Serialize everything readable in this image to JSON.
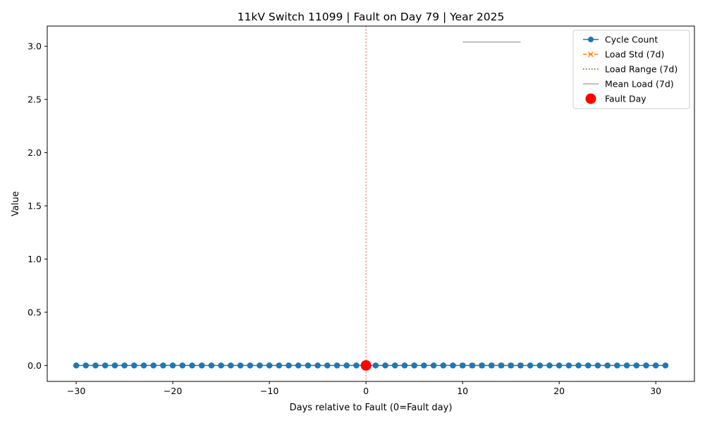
{
  "chart_data": {
    "type": "line",
    "title": "11kV Switch 11099 | Fault on Day 79 | Year 2025",
    "xlabel": "Days relative to Fault (0=Fault day)",
    "ylabel": "Value",
    "xlim": [
      -33,
      34
    ],
    "ylim": [
      -0.15,
      3.19
    ],
    "xticks": [
      -30,
      -20,
      -10,
      0,
      10,
      20,
      30
    ],
    "xtick_labels": [
      "−30",
      "−20",
      "−10",
      "0",
      "10",
      "20",
      "30"
    ],
    "yticks": [
      0.0,
      0.5,
      1.0,
      1.5,
      2.0,
      2.5,
      3.0
    ],
    "ytick_labels": [
      "0.0",
      "0.5",
      "1.0",
      "1.5",
      "2.0",
      "2.5",
      "3.0"
    ],
    "grid": false,
    "legend_position": "upper right",
    "fault_day": 0,
    "series": [
      {
        "name": "Cycle Count",
        "color": "#1f77b4",
        "marker": "circle",
        "linestyle": "solid",
        "x": [
          -30,
          -29,
          -28,
          -27,
          -26,
          -25,
          -24,
          -23,
          -22,
          -21,
          -20,
          -19,
          -18,
          -17,
          -16,
          -15,
          -14,
          -13,
          -12,
          -11,
          -10,
          -9,
          -8,
          -7,
          -6,
          -5,
          -4,
          -3,
          -2,
          -1,
          0,
          1,
          2,
          3,
          4,
          5,
          6,
          7,
          8,
          9,
          10,
          11,
          12,
          13,
          14,
          15,
          16,
          17,
          18,
          19,
          20,
          21,
          22,
          23,
          24,
          25,
          26,
          27,
          28,
          29,
          30,
          31
        ],
        "y": [
          0,
          0,
          0,
          0,
          0,
          0,
          0,
          0,
          0,
          0,
          0,
          0,
          0,
          0,
          0,
          0,
          0,
          0,
          0,
          0,
          0,
          0,
          0,
          0,
          0,
          0,
          0,
          0,
          0,
          0,
          0,
          0,
          0,
          0,
          0,
          0,
          0,
          0,
          0,
          0,
          0,
          0,
          0,
          0,
          0,
          0,
          0,
          0,
          0,
          0,
          0,
          0,
          0,
          0,
          0,
          0,
          0,
          0,
          0,
          0,
          0,
          0
        ]
      },
      {
        "name": "Load Std (7d)",
        "color": "#ff7f0e",
        "marker": "x",
        "linestyle": "dashed",
        "x": [
          10,
          11,
          12,
          13,
          14,
          15,
          16
        ],
        "y": [
          0,
          0,
          0,
          0,
          0,
          0,
          0
        ]
      },
      {
        "name": "Load Range (7d)",
        "color": "#008000",
        "marker": "none",
        "linestyle": "dotted",
        "x": [
          10,
          11,
          12,
          13,
          14,
          15,
          16
        ],
        "y": [
          0,
          0,
          0,
          0,
          0,
          0,
          0
        ]
      },
      {
        "name": "Mean Load (7d)",
        "color": "#aaaaaa",
        "marker": "none",
        "linestyle": "solid",
        "x": [
          10,
          11,
          12,
          13,
          14,
          15,
          16
        ],
        "y": [
          3.04,
          3.04,
          3.04,
          3.04,
          3.04,
          3.04,
          3.04
        ]
      },
      {
        "name": "Fault Day",
        "color": "#ff0000",
        "marker": "big-circle",
        "linestyle": "none",
        "x": [
          0
        ],
        "y": [
          0
        ]
      }
    ],
    "fault_line_color": "#f08080"
  }
}
